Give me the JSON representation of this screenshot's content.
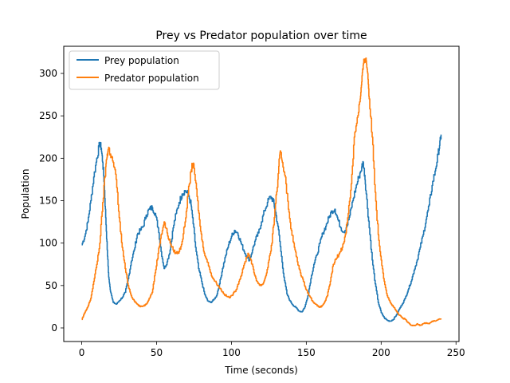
{
  "chart_data": {
    "type": "line",
    "title": "Prey vs Predator population over time",
    "xlabel": "Time (seconds)",
    "ylabel": "Population",
    "xlim": [
      -12,
      252
    ],
    "ylim": [
      -16,
      332
    ],
    "xticks": [
      0,
      50,
      100,
      150,
      200,
      250
    ],
    "yticks": [
      0,
      50,
      100,
      150,
      200,
      250,
      300
    ],
    "grid": false,
    "legend_position": "top-left",
    "series": [
      {
        "name": "Prey population",
        "color": "#1f77b4",
        "points": [
          [
            0,
            98
          ],
          [
            2,
            108
          ],
          [
            4,
            125
          ],
          [
            6,
            150
          ],
          [
            8,
            178
          ],
          [
            10,
            200
          ],
          [
            12,
            218
          ],
          [
            13,
            212
          ],
          [
            14,
            195
          ],
          [
            15,
            170
          ],
          [
            16,
            130
          ],
          [
            17,
            92
          ],
          [
            18,
            60
          ],
          [
            19,
            45
          ],
          [
            20,
            38
          ],
          [
            21,
            30
          ],
          [
            23,
            28
          ],
          [
            25,
            32
          ],
          [
            27,
            36
          ],
          [
            29,
            42
          ],
          [
            31,
            58
          ],
          [
            33,
            78
          ],
          [
            35,
            92
          ],
          [
            37,
            110
          ],
          [
            39,
            115
          ],
          [
            41,
            120
          ],
          [
            43,
            133
          ],
          [
            45,
            140
          ],
          [
            47,
            142
          ],
          [
            49,
            135
          ],
          [
            51,
            118
          ],
          [
            53,
            90
          ],
          [
            55,
            70
          ],
          [
            57,
            78
          ],
          [
            59,
            92
          ],
          [
            61,
            118
          ],
          [
            63,
            135
          ],
          [
            65,
            148
          ],
          [
            67,
            158
          ],
          [
            69,
            162
          ],
          [
            71,
            158
          ],
          [
            73,
            145
          ],
          [
            74,
            130
          ],
          [
            76,
            95
          ],
          [
            78,
            70
          ],
          [
            80,
            55
          ],
          [
            82,
            40
          ],
          [
            84,
            32
          ],
          [
            86,
            30
          ],
          [
            88,
            33
          ],
          [
            90,
            38
          ],
          [
            92,
            52
          ],
          [
            94,
            70
          ],
          [
            96,
            85
          ],
          [
            98,
            98
          ],
          [
            100,
            108
          ],
          [
            102,
            115
          ],
          [
            104,
            112
          ],
          [
            106,
            102
          ],
          [
            108,
            92
          ],
          [
            110,
            85
          ],
          [
            112,
            80
          ],
          [
            114,
            92
          ],
          [
            116,
            104
          ],
          [
            118,
            112
          ],
          [
            120,
            125
          ],
          [
            122,
            138
          ],
          [
            124,
            148
          ],
          [
            126,
            155
          ],
          [
            128,
            150
          ],
          [
            129,
            140
          ],
          [
            131,
            120
          ],
          [
            133,
            90
          ],
          [
            135,
            60
          ],
          [
            137,
            40
          ],
          [
            139,
            32
          ],
          [
            141,
            27
          ],
          [
            143,
            24
          ],
          [
            145,
            20
          ],
          [
            147,
            19
          ],
          [
            149,
            25
          ],
          [
            151,
            38
          ],
          [
            153,
            58
          ],
          [
            155,
            75
          ],
          [
            157,
            86
          ],
          [
            159,
            100
          ],
          [
            161,
            112
          ],
          [
            163,
            120
          ],
          [
            165,
            130
          ],
          [
            167,
            138
          ],
          [
            169,
            140
          ],
          [
            171,
            128
          ],
          [
            173,
            118
          ],
          [
            175,
            113
          ],
          [
            177,
            120
          ],
          [
            179,
            133
          ],
          [
            181,
            150
          ],
          [
            183,
            165
          ],
          [
            185,
            178
          ],
          [
            187,
            190
          ],
          [
            188,
            195
          ],
          [
            189,
            180
          ],
          [
            190,
            158
          ],
          [
            192,
            118
          ],
          [
            194,
            80
          ],
          [
            196,
            52
          ],
          [
            198,
            30
          ],
          [
            200,
            18
          ],
          [
            202,
            12
          ],
          [
            204,
            9
          ],
          [
            206,
            8
          ],
          [
            208,
            10
          ],
          [
            210,
            15
          ],
          [
            212,
            22
          ],
          [
            214,
            28
          ],
          [
            216,
            35
          ],
          [
            218,
            45
          ],
          [
            220,
            55
          ],
          [
            222,
            68
          ],
          [
            224,
            80
          ],
          [
            226,
            95
          ],
          [
            228,
            110
          ],
          [
            230,
            128
          ],
          [
            232,
            145
          ],
          [
            234,
            168
          ],
          [
            236,
            185
          ],
          [
            238,
            205
          ],
          [
            239,
            215
          ],
          [
            240,
            228
          ]
        ]
      },
      {
        "name": "Predator population",
        "color": "#ff7f0e",
        "points": [
          [
            0,
            10
          ],
          [
            2,
            18
          ],
          [
            4,
            25
          ],
          [
            6,
            35
          ],
          [
            8,
            55
          ],
          [
            10,
            75
          ],
          [
            12,
            100
          ],
          [
            14,
            148
          ],
          [
            16,
            190
          ],
          [
            17,
            205
          ],
          [
            18,
            213
          ],
          [
            19,
            205
          ],
          [
            21,
            195
          ],
          [
            23,
            175
          ],
          [
            25,
            130
          ],
          [
            27,
            95
          ],
          [
            29,
            70
          ],
          [
            31,
            50
          ],
          [
            33,
            38
          ],
          [
            35,
            32
          ],
          [
            37,
            28
          ],
          [
            39,
            25
          ],
          [
            41,
            26
          ],
          [
            43,
            28
          ],
          [
            45,
            35
          ],
          [
            47,
            42
          ],
          [
            49,
            65
          ],
          [
            51,
            88
          ],
          [
            53,
            110
          ],
          [
            55,
            125
          ],
          [
            57,
            112
          ],
          [
            59,
            100
          ],
          [
            61,
            92
          ],
          [
            63,
            88
          ],
          [
            65,
            90
          ],
          [
            67,
            102
          ],
          [
            69,
            125
          ],
          [
            71,
            158
          ],
          [
            73,
            185
          ],
          [
            74,
            193
          ],
          [
            75,
            188
          ],
          [
            77,
            155
          ],
          [
            79,
            120
          ],
          [
            81,
            95
          ],
          [
            83,
            82
          ],
          [
            85,
            72
          ],
          [
            87,
            60
          ],
          [
            89,
            55
          ],
          [
            91,
            50
          ],
          [
            93,
            45
          ],
          [
            95,
            40
          ],
          [
            97,
            37
          ],
          [
            99,
            36
          ],
          [
            101,
            40
          ],
          [
            103,
            45
          ],
          [
            105,
            55
          ],
          [
            107,
            65
          ],
          [
            109,
            78
          ],
          [
            111,
            88
          ],
          [
            113,
            80
          ],
          [
            115,
            65
          ],
          [
            117,
            55
          ],
          [
            119,
            50
          ],
          [
            121,
            52
          ],
          [
            123,
            62
          ],
          [
            125,
            80
          ],
          [
            127,
            100
          ],
          [
            129,
            140
          ],
          [
            131,
            175
          ],
          [
            132,
            200
          ],
          [
            133,
            207
          ],
          [
            134,
            195
          ],
          [
            136,
            178
          ],
          [
            138,
            140
          ],
          [
            140,
            115
          ],
          [
            142,
            95
          ],
          [
            144,
            78
          ],
          [
            146,
            65
          ],
          [
            148,
            55
          ],
          [
            150,
            45
          ],
          [
            152,
            38
          ],
          [
            154,
            32
          ],
          [
            156,
            28
          ],
          [
            158,
            25
          ],
          [
            160,
            25
          ],
          [
            162,
            30
          ],
          [
            164,
            38
          ],
          [
            166,
            55
          ],
          [
            168,
            75
          ],
          [
            170,
            82
          ],
          [
            172,
            88
          ],
          [
            174,
            95
          ],
          [
            176,
            110
          ],
          [
            178,
            135
          ],
          [
            180,
            170
          ],
          [
            182,
            225
          ],
          [
            184,
            248
          ],
          [
            186,
            270
          ],
          [
            187,
            290
          ],
          [
            188,
            310
          ],
          [
            189,
            317
          ],
          [
            190,
            315
          ],
          [
            191,
            300
          ],
          [
            192,
            270
          ],
          [
            194,
            225
          ],
          [
            196,
            160
          ],
          [
            198,
            110
          ],
          [
            200,
            80
          ],
          [
            202,
            55
          ],
          [
            204,
            38
          ],
          [
            206,
            30
          ],
          [
            208,
            25
          ],
          [
            210,
            20
          ],
          [
            212,
            15
          ],
          [
            214,
            12
          ],
          [
            216,
            10
          ],
          [
            218,
            6
          ],
          [
            220,
            3
          ],
          [
            222,
            3
          ],
          [
            224,
            5
          ],
          [
            226,
            3
          ],
          [
            228,
            5
          ],
          [
            230,
            6
          ],
          [
            232,
            5
          ],
          [
            234,
            8
          ],
          [
            236,
            8
          ],
          [
            238,
            10
          ],
          [
            240,
            10
          ]
        ]
      }
    ]
  }
}
